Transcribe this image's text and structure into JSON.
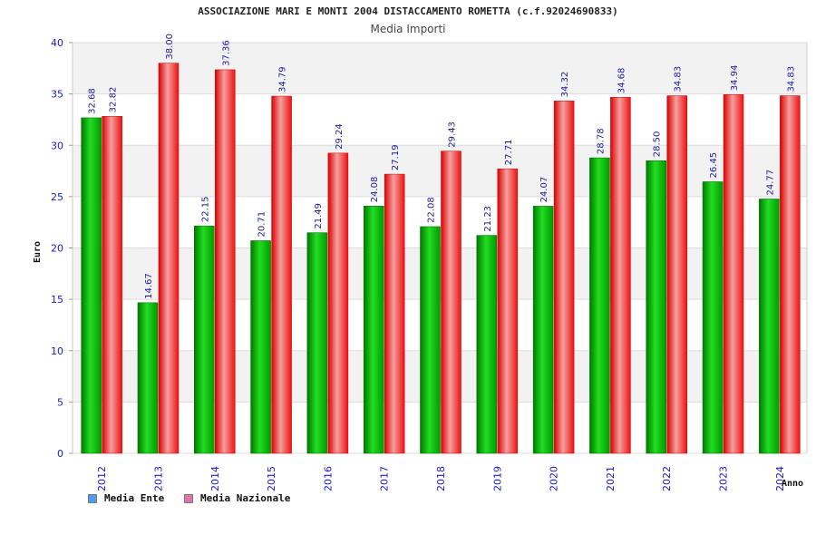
{
  "chart_data": {
    "type": "bar",
    "title": "ASSOCIAZIONE MARI E MONTI 2004 DISTACCAMENTO ROMETTA (c.f.92024690833)",
    "subtitle": "Media Importi",
    "xlabel": "Anno",
    "ylabel": "Euro",
    "ylim": [
      0,
      40
    ],
    "yticks": [
      0,
      5,
      10,
      15,
      20,
      25,
      30,
      35,
      40
    ],
    "categories": [
      "2012",
      "2013",
      "2014",
      "2015",
      "2016",
      "2017",
      "2018",
      "2019",
      "2020",
      "2021",
      "2022",
      "2023",
      "2024"
    ],
    "series": [
      {
        "name": "Media Ente",
        "color": "#00aa00",
        "legend_color": "#5599ee",
        "values": [
          32.68,
          14.67,
          22.15,
          20.71,
          21.49,
          24.08,
          22.08,
          21.23,
          24.07,
          28.78,
          28.5,
          26.45,
          24.77
        ],
        "labels": [
          "32.68",
          "14.67",
          "22.15",
          "20.71",
          "21.49",
          "24.08",
          "22.08",
          "21.23",
          "24.07",
          "28.78",
          "28.50",
          "26.45",
          "24.77"
        ]
      },
      {
        "name": "Media Nazionale",
        "color": "#ee1111",
        "legend_color": "#dd77aa",
        "values": [
          32.82,
          38.0,
          37.36,
          34.79,
          29.24,
          27.19,
          29.43,
          27.71,
          34.32,
          34.68,
          34.83,
          34.94,
          34.83
        ],
        "labels": [
          "32.82",
          "38.00",
          "37.36",
          "34.79",
          "29.24",
          "27.19",
          "29.43",
          "27.71",
          "34.32",
          "34.68",
          "34.83",
          "34.94",
          "34.83"
        ]
      }
    ],
    "legend_position": "bottom-left",
    "grid": true
  },
  "colors": {
    "axis_text": "#1a1acc",
    "label_text": "#1a1a99",
    "band_light": "#f2f2f2",
    "band_white": "#ffffff"
  }
}
